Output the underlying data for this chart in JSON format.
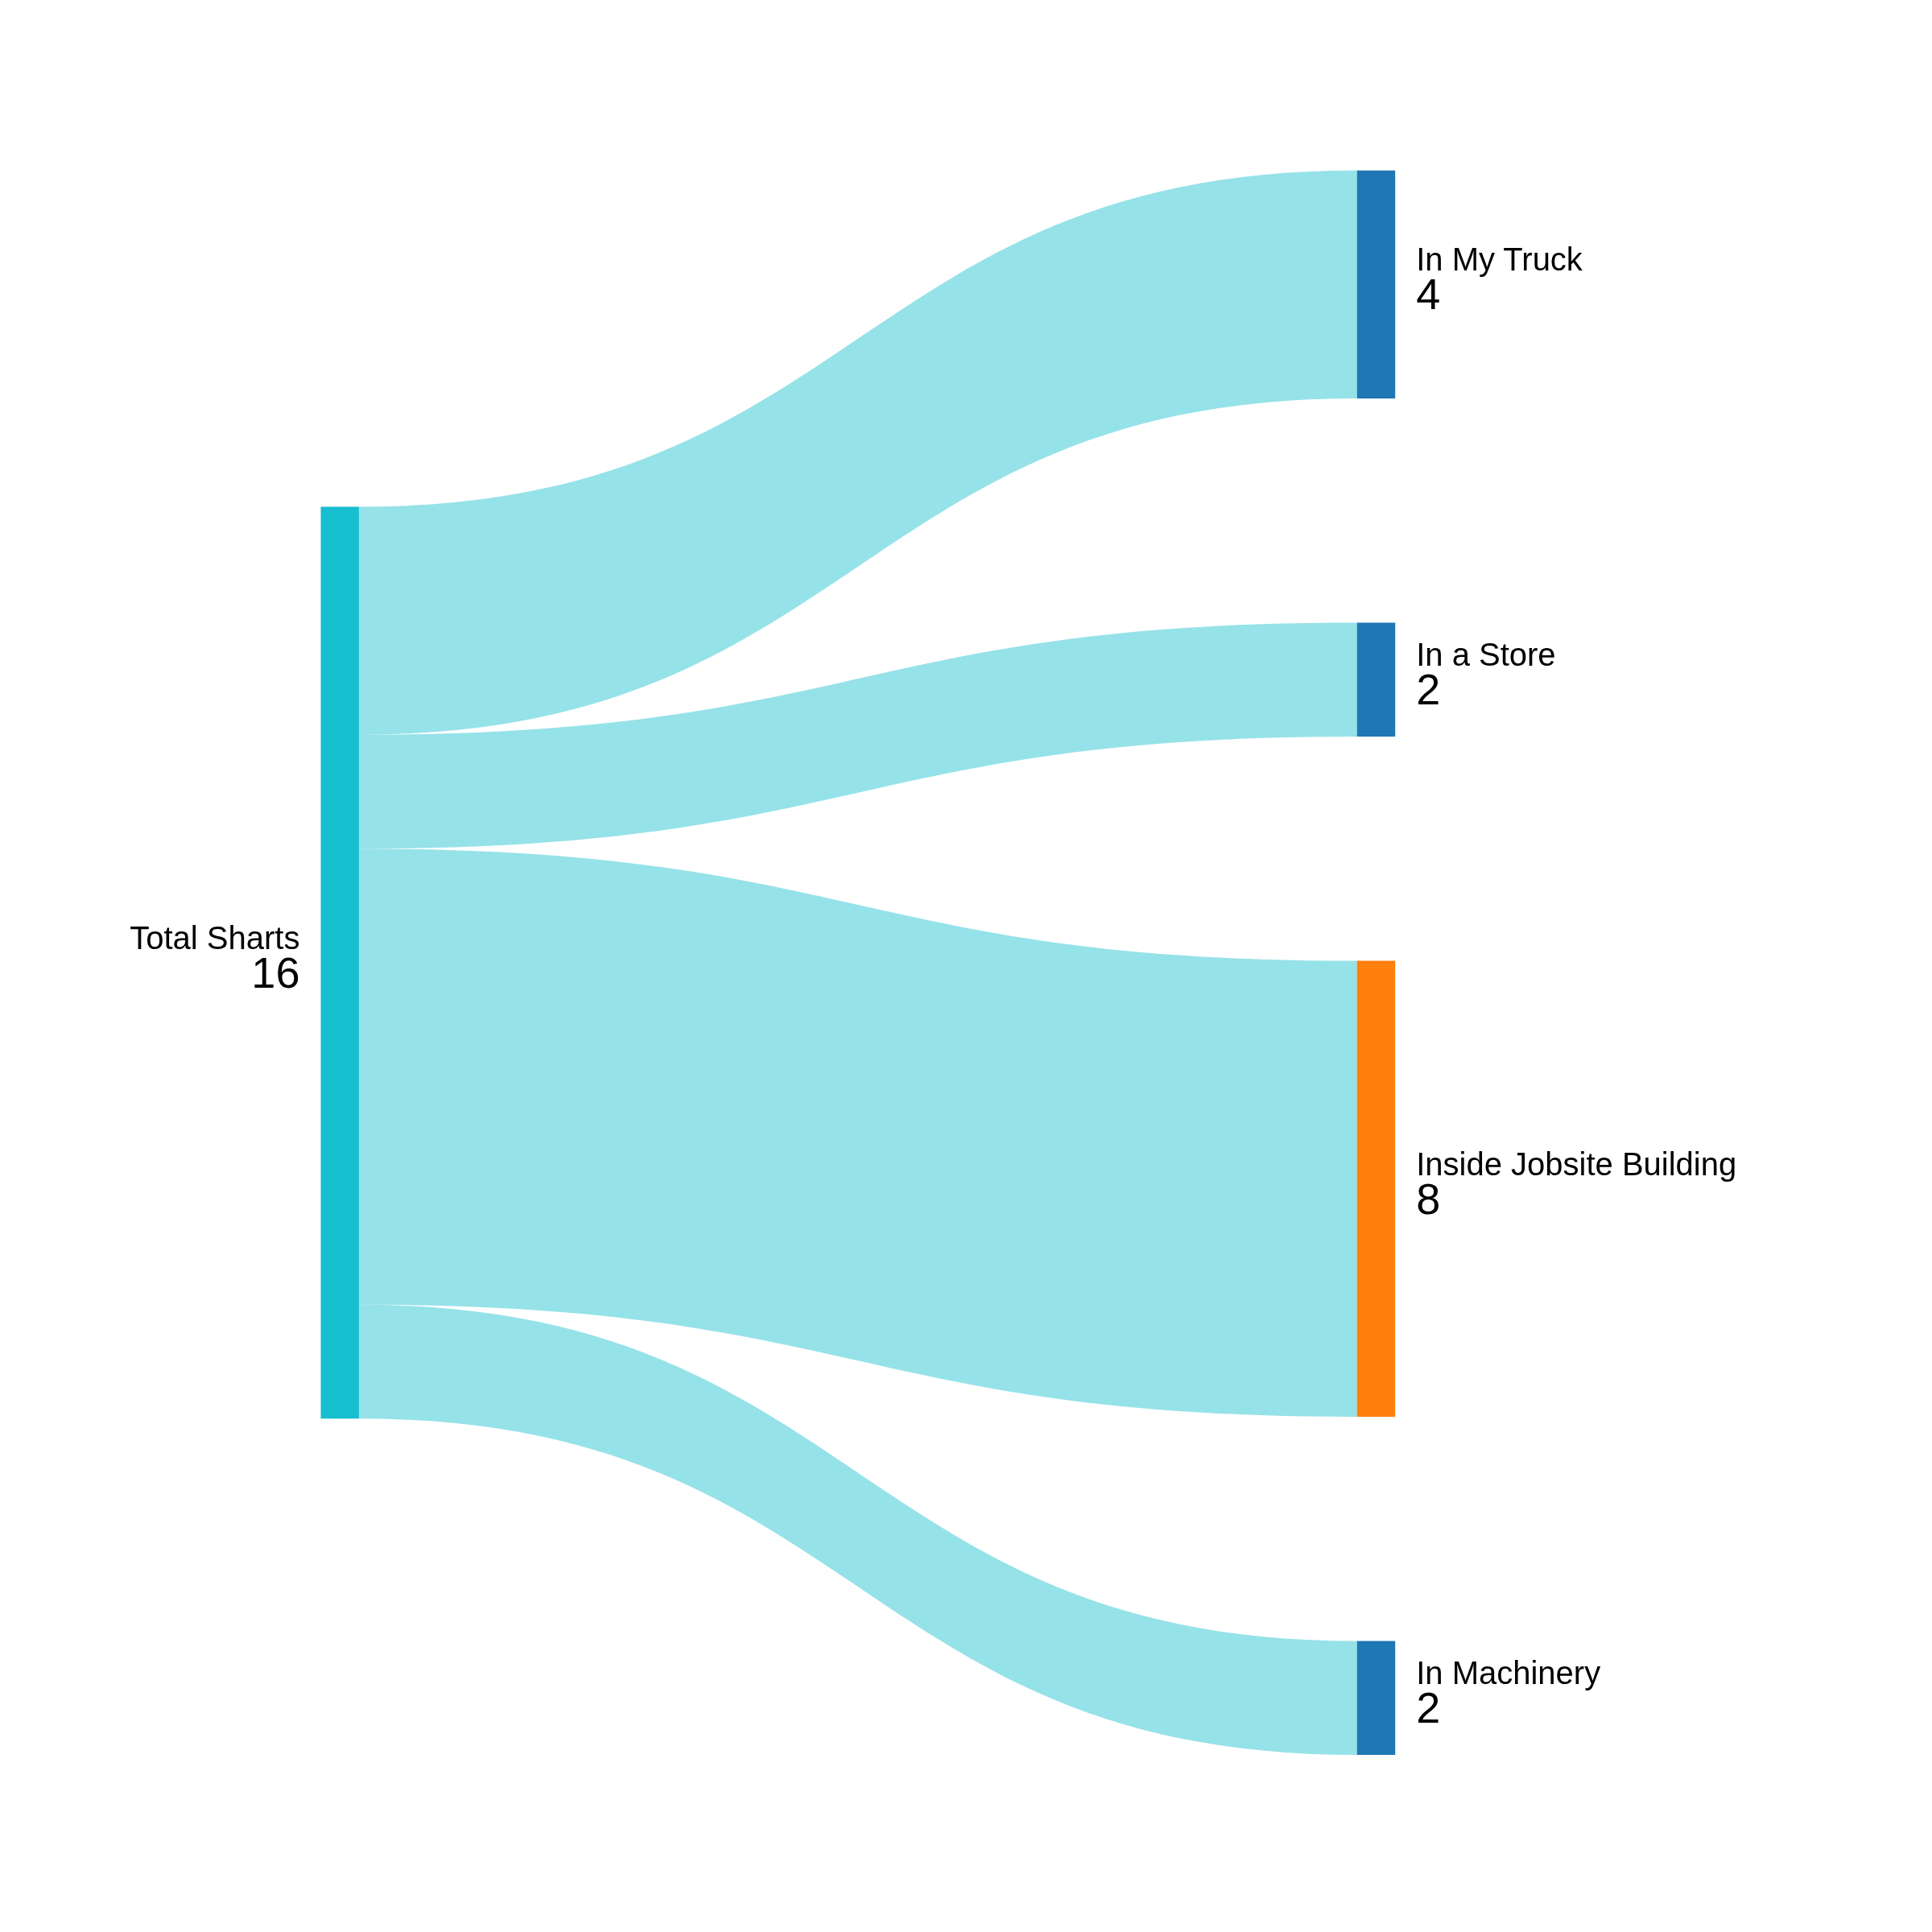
{
  "chart_data": {
    "type": "other",
    "categories": [
      "Total Sharts",
      "In My Truck",
      "In a Store",
      "Inside Jobsite Building",
      "In Machinery"
    ],
    "values": [
      16,
      4,
      2,
      8,
      2
    ],
    "colors": [
      "#17becf",
      "#1f77b4",
      "#1f77b4",
      "#ff7f0e",
      "#1f77b4"
    ],
    "data_labels": true
  }
}
